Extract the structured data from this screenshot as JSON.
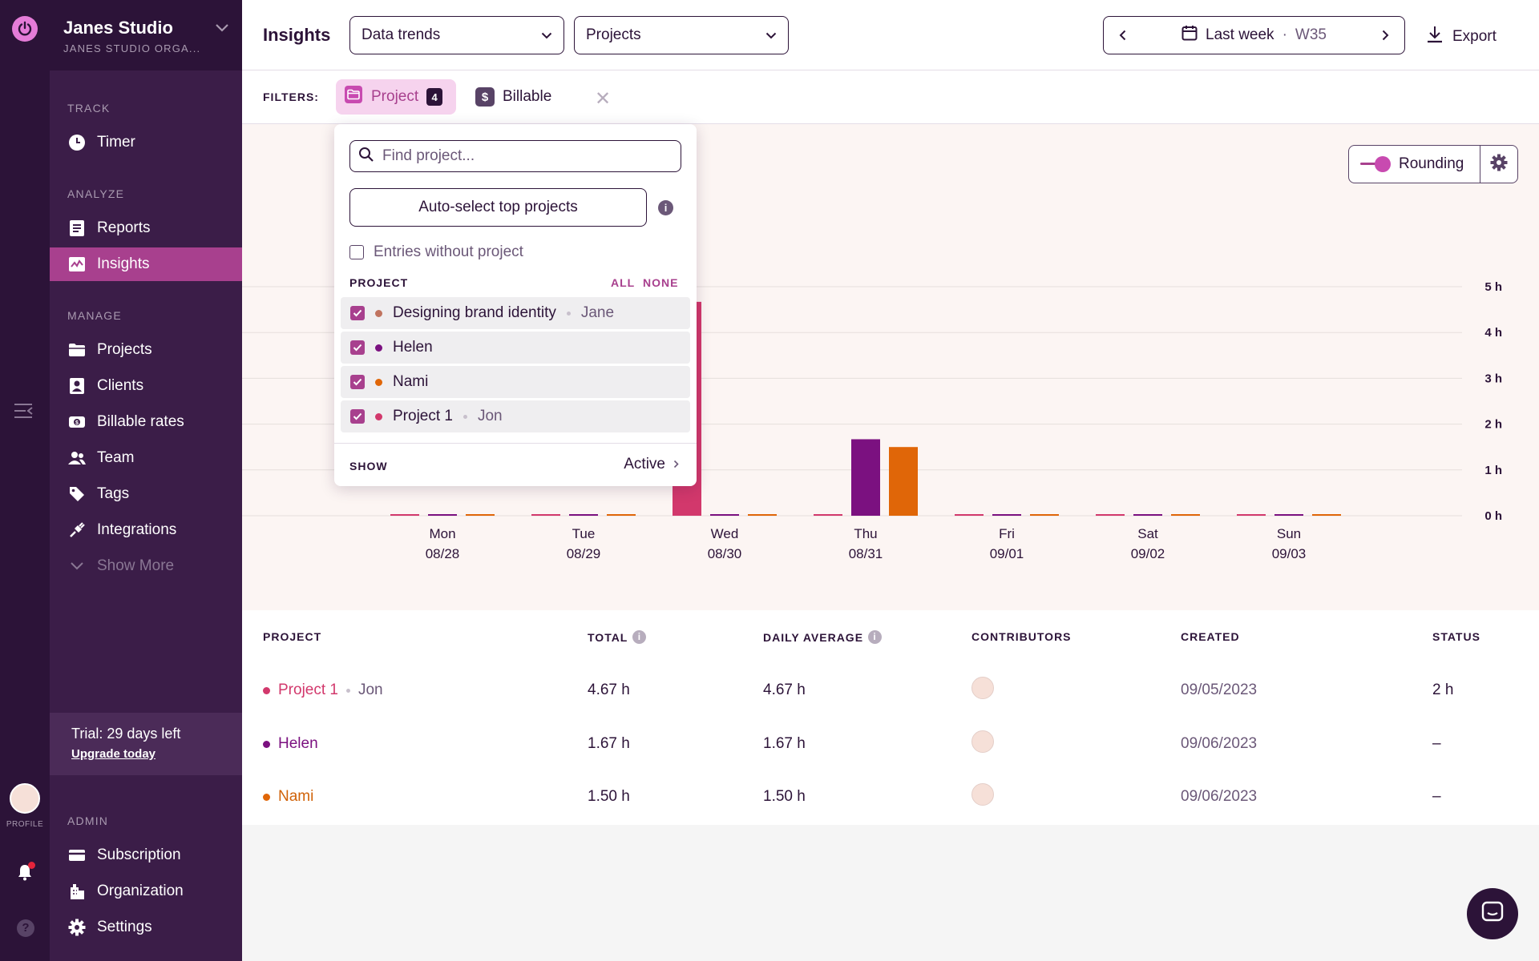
{
  "workspace": {
    "name": "Janes Studio",
    "org": "JANES STUDIO ORGA..."
  },
  "sidebar": {
    "sections": {
      "track": "TRACK",
      "analyze": "ANALYZE",
      "manage": "MANAGE",
      "admin": "ADMIN"
    },
    "items": {
      "timer": "Timer",
      "reports": "Reports",
      "insights": "Insights",
      "projects": "Projects",
      "clients": "Clients",
      "billable_rates": "Billable rates",
      "team": "Team",
      "tags": "Tags",
      "integrations": "Integrations",
      "show_more": "Show More",
      "subscription": "Subscription",
      "organization": "Organization",
      "settings": "Settings"
    },
    "trial": {
      "text": "Trial: 29 days left",
      "link": "Upgrade today"
    },
    "profile_label": "PROFILE"
  },
  "header": {
    "title": "Insights",
    "select_view": "Data trends",
    "select_group": "Projects",
    "date_label": "Last week",
    "date_sep": "·",
    "week": "W35",
    "export": "Export"
  },
  "filters": {
    "label": "FILTERS:",
    "project_chip": "Project",
    "project_count": "4",
    "billable_chip": "Billable"
  },
  "rounding": {
    "label": "Rounding",
    "enabled": true
  },
  "dropdown": {
    "search_placeholder": "Find project...",
    "auto_select": "Auto-select top projects",
    "entries_without_project": "Entries without project",
    "project_header": "PROJECT",
    "all": "ALL",
    "none": "NONE",
    "items": [
      {
        "name": "Designing brand identity",
        "client": "Jane",
        "color": "#c0735f",
        "checked": true
      },
      {
        "name": "Helen",
        "client": "",
        "color": "#7b1180",
        "checked": true
      },
      {
        "name": "Nami",
        "client": "",
        "color": "#e06608",
        "checked": true
      },
      {
        "name": "Project 1",
        "client": "Jon",
        "color": "#d2386c",
        "checked": true
      }
    ],
    "show_label": "SHOW",
    "show_value": "Active"
  },
  "chart_data": {
    "type": "bar",
    "categories": [
      "Mon 08/28",
      "Tue 08/29",
      "Wed 08/30",
      "Thu 08/31",
      "Fri 09/01",
      "Sat 09/02",
      "Sun 09/03"
    ],
    "day_labels": [
      "Mon",
      "Tue",
      "Wed",
      "Thu",
      "Fri",
      "Sat",
      "Sun"
    ],
    "date_labels": [
      "08/28",
      "08/29",
      "08/30",
      "08/31",
      "09/01",
      "09/02",
      "09/03"
    ],
    "y_ticks": [
      "0 h",
      "1 h",
      "2 h",
      "3 h",
      "4 h",
      "5 h"
    ],
    "ylim": [
      0,
      5
    ],
    "grid": true,
    "series": [
      {
        "name": "Project 1",
        "color": "#d2386c",
        "values": [
          0,
          0,
          4.67,
          0,
          0,
          0,
          0
        ]
      },
      {
        "name": "Helen",
        "color": "#7b1180",
        "values": [
          0,
          0,
          0,
          1.67,
          0,
          0,
          0
        ]
      },
      {
        "name": "Nami",
        "color": "#e06608",
        "values": [
          0,
          0,
          0,
          1.5,
          0,
          0,
          0
        ]
      }
    ]
  },
  "table": {
    "headers": {
      "project": "PROJECT",
      "total": "TOTAL",
      "daily_average": "DAILY AVERAGE",
      "contributors": "CONTRIBUTORS",
      "created": "CREATED",
      "status": "STATUS"
    },
    "rows": [
      {
        "project": "Project 1",
        "client": "Jon",
        "color": "#d2386c",
        "total": "4.67 h",
        "daily_average": "4.67 h",
        "created": "09/05/2023",
        "status": "2 h"
      },
      {
        "project": "Helen",
        "client": "",
        "color": "#7b1180",
        "total": "1.67 h",
        "daily_average": "1.67 h",
        "created": "09/06/2023",
        "status": "–"
      },
      {
        "project": "Nami",
        "client": "",
        "color": "#e06608",
        "total": "1.50 h",
        "daily_average": "1.50 h",
        "created": "09/06/2023",
        "status": "–"
      }
    ]
  },
  "colors": {
    "brand_dark": "#2c1338",
    "sidebar": "#3b1d48",
    "accent": "#a8408e",
    "accent_light": "#f6d3ee"
  }
}
